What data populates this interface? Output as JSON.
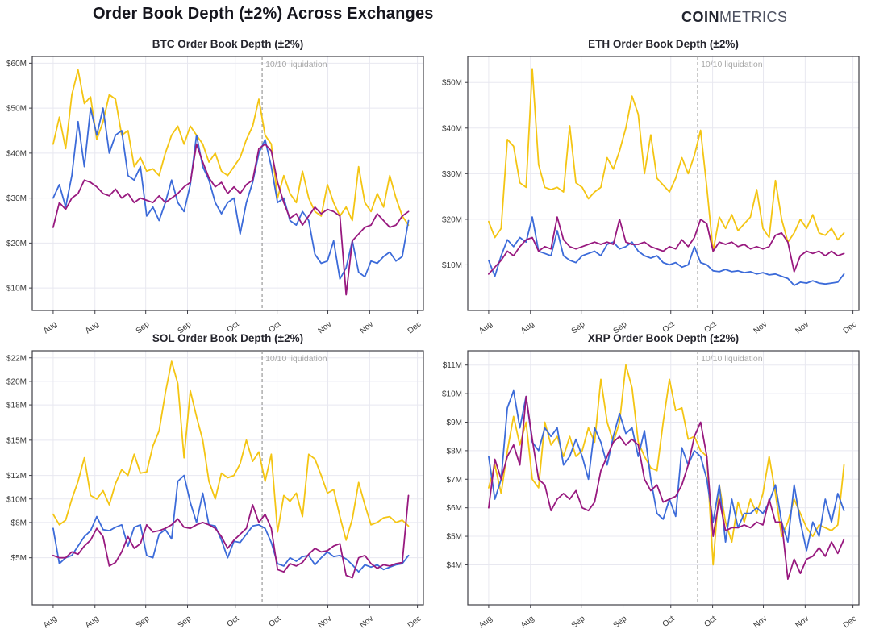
{
  "header": {
    "title": "Order Book Depth (±2%) Across Exchanges",
    "logo_bold": "COIN",
    "logo_light": "METRICS"
  },
  "colors": {
    "yellow": "#F4C513",
    "blue": "#3C6BD9",
    "purple": "#98197F",
    "grid": "#E8E8F0",
    "axis": "#3F3F46",
    "annotation_line": "#999999",
    "annotation_text": "#A8A8A8"
  },
  "x_axis": {
    "tick_labels": [
      "Aug",
      "Aug",
      "Sep",
      "Sep",
      "Oct",
      "Oct",
      "Nov",
      "Nov",
      "Dec"
    ],
    "tick_days": [
      0,
      14,
      31,
      45,
      61,
      75,
      92,
      106,
      122
    ],
    "domain": [
      -7,
      124
    ]
  },
  "annotation": {
    "label": "10/10 liquidation",
    "day": 70
  },
  "chart_data": [
    {
      "id": "btc",
      "type": "line",
      "title": "BTC Order Book Depth (±2%)",
      "x_unit": "days since Aug 1",
      "y_unit": "$M depth",
      "y_domain": [
        5,
        61.5
      ],
      "y_ticks": [
        10,
        20,
        30,
        40,
        50,
        60
      ],
      "y_tick_labels": [
        "$10M",
        "$20M",
        "$30M",
        "$40M",
        "$50M",
        "$60M"
      ],
      "data_days": [
        0,
        119
      ],
      "series": [
        {
          "name": "yellow",
          "values": [
            42,
            48,
            41,
            53,
            58.5,
            51,
            52.5,
            43,
            47,
            53,
            52,
            44,
            45,
            37,
            39,
            36,
            36.5,
            35,
            40,
            44,
            46,
            42,
            46,
            44,
            42,
            38,
            40,
            36,
            35,
            37,
            39,
            43,
            46,
            52,
            44,
            42,
            30,
            35,
            31,
            29,
            36,
            30,
            27,
            26,
            33,
            29,
            26,
            28,
            25,
            37,
            29,
            27,
            31,
            28,
            35,
            30,
            26,
            24
          ]
        },
        {
          "name": "blue",
          "values": [
            30,
            33,
            28,
            35,
            47,
            37,
            50,
            44,
            50,
            40,
            44,
            45,
            35,
            34,
            37,
            26,
            28,
            25,
            29,
            34,
            29,
            27,
            33,
            44,
            37,
            34,
            29,
            26.5,
            29,
            30,
            22,
            29,
            33.5,
            40,
            43,
            37,
            29,
            30,
            25,
            24,
            27,
            25,
            17.5,
            15.5,
            16,
            20.5,
            12,
            14.5,
            20.5,
            13.5,
            12.5,
            16,
            15.5,
            17,
            18,
            16,
            17,
            25
          ]
        },
        {
          "name": "purple",
          "values": [
            23.5,
            29,
            27.5,
            30,
            31,
            34,
            33.5,
            32.5,
            31,
            30.5,
            32,
            30,
            31,
            29,
            30,
            29.5,
            29,
            30.5,
            29,
            30,
            31,
            32.5,
            33.5,
            42,
            38,
            34.5,
            32.5,
            33.5,
            31,
            32.5,
            31,
            33,
            34,
            41,
            42,
            40.5,
            33.5,
            29,
            25.5,
            26.5,
            24,
            26,
            28,
            26.5,
            27.5,
            27,
            26,
            8.5,
            20.5,
            22,
            23.5,
            24,
            26.5,
            25,
            23.5,
            24,
            26,
            27
          ]
        }
      ]
    },
    {
      "id": "eth",
      "type": "line",
      "title": "ETH Order Book Depth (±2%)",
      "x_unit": "days since Aug 1",
      "y_unit": "$M depth",
      "y_domain": [
        0,
        55.7
      ],
      "y_ticks": [
        10,
        20,
        30,
        40,
        50
      ],
      "y_tick_labels": [
        "$10M",
        "$20M",
        "$30M",
        "$40M",
        "$50M"
      ],
      "data_days": [
        0,
        119
      ],
      "series": [
        {
          "name": "yellow",
          "values": [
            19.5,
            16,
            18,
            37.5,
            36,
            28,
            27,
            53,
            32,
            27,
            26.5,
            27,
            26,
            40.5,
            28,
            27,
            24.5,
            26,
            27,
            33.5,
            31,
            35,
            40,
            47,
            43,
            30,
            38.5,
            29,
            27.5,
            26,
            29,
            33.5,
            30,
            34,
            39.5,
            27,
            13,
            20.5,
            18,
            21,
            17.5,
            19,
            20.5,
            26.5,
            18,
            16,
            28.5,
            20,
            15,
            17,
            20,
            18,
            21,
            17,
            16.5,
            18,
            15.5,
            17
          ]
        },
        {
          "name": "blue",
          "values": [
            11,
            7.5,
            12,
            15.5,
            14,
            16,
            15,
            20.5,
            13,
            12.5,
            12,
            17.5,
            12,
            11,
            10.5,
            12,
            12.5,
            13,
            12,
            14.5,
            15,
            13.5,
            14,
            15,
            13,
            12,
            11.5,
            12,
            10.5,
            10,
            10.5,
            9.5,
            10,
            14,
            10.5,
            10,
            8.7,
            8.5,
            9,
            8.5,
            8.7,
            8.3,
            8.5,
            8,
            8.3,
            7.8,
            8,
            7.5,
            7,
            5.5,
            6.2,
            6,
            6.5,
            6,
            5.8,
            6,
            6.2,
            8
          ]
        },
        {
          "name": "purple",
          "values": [
            8,
            9.5,
            11,
            13,
            12,
            14,
            15.5,
            16,
            13,
            14,
            13.5,
            20.5,
            15.5,
            14,
            13.5,
            14,
            14.5,
            15,
            14.5,
            15,
            14.5,
            20,
            15,
            14.5,
            14.5,
            15,
            14,
            13.5,
            13,
            14,
            13.5,
            15.5,
            14,
            16,
            20,
            19,
            13,
            15,
            14.5,
            15,
            14,
            14.5,
            13.5,
            14,
            13.5,
            14,
            16.5,
            17,
            15,
            8.5,
            12,
            13,
            12.5,
            13,
            12,
            13,
            12,
            12.5
          ]
        }
      ]
    },
    {
      "id": "sol",
      "type": "line",
      "title": "SOL Order Book Depth (±2%)",
      "x_unit": "days since Aug 1",
      "y_unit": "$M depth",
      "y_domain": [
        1,
        22.6
      ],
      "y_ticks": [
        5,
        8,
        10,
        12,
        15,
        18,
        20,
        22
      ],
      "y_tick_labels": [
        "$5M",
        "$8M",
        "$10M",
        "$12M",
        "$15M",
        "$18M",
        "$20M",
        "$22M"
      ],
      "data_days": [
        0,
        119
      ],
      "series": [
        {
          "name": "yellow",
          "values": [
            8.7,
            7.8,
            8.2,
            10,
            11.5,
            13.5,
            10.3,
            10,
            10.7,
            9.5,
            11.3,
            12.5,
            12,
            13.8,
            12.2,
            12.3,
            14.5,
            15.8,
            19,
            21.7,
            19.8,
            13.5,
            19.2,
            17,
            15,
            11.5,
            10,
            12.2,
            11.8,
            12,
            13,
            15,
            13.2,
            14,
            11.5,
            13.8,
            7.2,
            10.3,
            9.8,
            10.5,
            8.5,
            13.8,
            13.4,
            12,
            10.5,
            10.8,
            8.5,
            6.5,
            8.3,
            11.4,
            9.5,
            7.8,
            8,
            8.4,
            8.5,
            8,
            8.2,
            7.7
          ]
        },
        {
          "name": "blue",
          "values": [
            7.5,
            4.5,
            5,
            5.2,
            6,
            6.8,
            7.3,
            8.5,
            7.4,
            7.3,
            7.6,
            7.8,
            6,
            7.6,
            7.8,
            5.2,
            5,
            7,
            7.4,
            6.6,
            11.5,
            12,
            9.7,
            8,
            10.5,
            7.8,
            7.7,
            6.5,
            5,
            6.4,
            6.3,
            7,
            7.7,
            7.8,
            7.5,
            6.3,
            4.5,
            4.3,
            5,
            4.7,
            5.1,
            5.2,
            4.4,
            5,
            5.5,
            5.1,
            5.2,
            4.9,
            4.4,
            3.8,
            4.4,
            4.2,
            4.4,
            4,
            4.2,
            4.4,
            4.5,
            5.2
          ]
        },
        {
          "name": "purple",
          "values": [
            5.2,
            5,
            5,
            5.5,
            5.3,
            6,
            6.5,
            7.5,
            6.8,
            4.3,
            4.6,
            5.5,
            6.8,
            5.8,
            6.2,
            7.8,
            7.2,
            7.3,
            7.5,
            7.8,
            8.3,
            7.6,
            7.5,
            7.8,
            8,
            7.8,
            7.5,
            6.8,
            5.8,
            6.5,
            7,
            7.5,
            9.5,
            8,
            8.7,
            7.5,
            4,
            3.8,
            4.5,
            4.3,
            4.6,
            5.3,
            5.8,
            5.5,
            5.6,
            6,
            6.2,
            3.5,
            3.3,
            5,
            5.2,
            4.5,
            4.1,
            4.4,
            4.3,
            4.5,
            4.6,
            10.3
          ]
        }
      ]
    },
    {
      "id": "xrp",
      "type": "line",
      "title": "XRP Order Book Depth (±2%)",
      "x_unit": "days since Aug 1",
      "y_unit": "$M depth",
      "y_domain": [
        2.6,
        11.5
      ],
      "y_ticks": [
        4,
        5,
        6,
        7,
        8,
        9,
        10,
        11
      ],
      "y_tick_labels": [
        "$4M",
        "$5M",
        "$6M",
        "$7M",
        "$8M",
        "$9M",
        "$10M",
        "$11M"
      ],
      "data_days": [
        0,
        119
      ],
      "series": [
        {
          "name": "yellow",
          "values": [
            6.7,
            7.5,
            6.5,
            8,
            9.2,
            8.2,
            9,
            7,
            6.7,
            9,
            8.2,
            8.5,
            7.8,
            8.5,
            7.8,
            8,
            8.8,
            8.3,
            10.5,
            9,
            8.3,
            9,
            11,
            10.2,
            8.3,
            7.8,
            7.4,
            7.3,
            9,
            10.5,
            9.4,
            9.5,
            8.4,
            8.5,
            8,
            7.8,
            4,
            6.8,
            5.5,
            4.8,
            6.2,
            5.5,
            6.3,
            5.8,
            6.5,
            7.8,
            6.5,
            5,
            5.5,
            6.3,
            5.8,
            5.3,
            5,
            5.4,
            5.3,
            5.2,
            5.4,
            7.5
          ]
        },
        {
          "name": "blue",
          "values": [
            7.8,
            6.3,
            7,
            9.5,
            10.1,
            8.8,
            9.9,
            8.3,
            8,
            8.8,
            8.5,
            8.8,
            7.5,
            7.8,
            8.4,
            7.8,
            7,
            8.8,
            8.3,
            7.5,
            8.5,
            9.3,
            8.6,
            8.8,
            7.8,
            8.7,
            7,
            5.8,
            5.6,
            6.3,
            5.7,
            8.1,
            7.5,
            8,
            7.8,
            7,
            5.5,
            6.8,
            4.8,
            6.3,
            5.3,
            5.8,
            5.8,
            6,
            5.8,
            6.2,
            6.8,
            5.5,
            4.8,
            6.8,
            5.5,
            4.5,
            5.5,
            5,
            6.3,
            5.5,
            6.5,
            5.9
          ]
        },
        {
          "name": "purple",
          "values": [
            6,
            7.7,
            7,
            7.8,
            8.2,
            7.5,
            9.9,
            8.4,
            7,
            6.8,
            5.9,
            6.3,
            6.5,
            6.3,
            6.6,
            6,
            5.9,
            6.2,
            7.3,
            7.8,
            8.3,
            8.5,
            8.2,
            8.4,
            8.2,
            7,
            6.6,
            6.8,
            6.2,
            6.3,
            6.4,
            6.8,
            7.5,
            8.5,
            9,
            7.8,
            5,
            6.3,
            5.2,
            5.3,
            5.3,
            5.4,
            5.3,
            5.5,
            5.4,
            6.3,
            5.5,
            5.5,
            3.5,
            4.2,
            3.7,
            4.2,
            4.3,
            4.6,
            4.3,
            4.8,
            4.4,
            4.9
          ]
        }
      ]
    }
  ]
}
